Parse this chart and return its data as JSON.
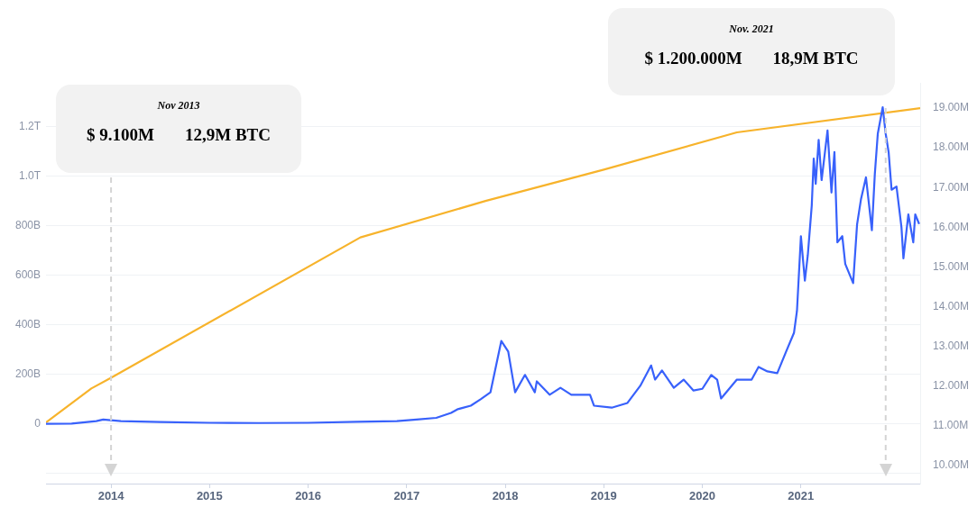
{
  "chart_data": {
    "type": "line",
    "annotations": [
      "Nov 2013",
      "$ 9.100M",
      "12,9M BTC",
      "Nov. 2021",
      "$ 1.200.000M",
      "18,9M BTC"
    ],
    "series": [
      {
        "color": "#3861fb",
        "x": [
          2013.34,
          2013.6,
          2013.85,
          2013.92,
          2014.1,
          2014.5,
          2015.0,
          2015.5,
          2016.0,
          2016.5,
          2016.9,
          2017.1,
          2017.3,
          2017.45,
          2017.52,
          2017.65,
          2017.75,
          2017.85,
          2017.96,
          2018.03,
          2018.1,
          2018.2,
          2018.3,
          2018.32,
          2018.45,
          2018.56,
          2018.67,
          2018.86,
          2018.9,
          2019.08,
          2019.24,
          2019.37,
          2019.48,
          2019.52,
          2019.59,
          2019.71,
          2019.81,
          2019.91,
          2020.0,
          2020.09,
          2020.15,
          2020.19,
          2020.35,
          2020.5,
          2020.57,
          2020.66,
          2020.76,
          2020.85,
          2020.93,
          2020.96,
          2021.0,
          2021.04,
          2021.07,
          2021.11,
          2021.13,
          2021.15,
          2021.18,
          2021.21,
          2021.27,
          2021.31,
          2021.34,
          2021.37,
          2021.42,
          2021.45,
          2021.53,
          2021.57,
          2021.61,
          2021.66,
          2021.72,
          2021.75,
          2021.78,
          2021.83,
          2021.86,
          2021.89,
          2021.92,
          2021.97,
          2022.02,
          2022.04,
          2022.09,
          2022.14,
          2022.16,
          2022.2
        ],
        "values": [
          1000000000.0,
          2000000000.0,
          12000000000.0,
          18000000000.0,
          12000000000.0,
          8000000000.0,
          5000000000.0,
          4000000000.0,
          5000000000.0,
          9000000000.0,
          12000000000.0,
          18000000000.0,
          25000000000.0,
          45000000000.0,
          60000000000.0,
          74000000000.0,
          100000000000.0,
          128000000000.0,
          335000000000.0,
          292000000000.0,
          128000000000.0,
          198000000000.0,
          128000000000.0,
          172000000000.0,
          118000000000.0,
          146000000000.0,
          118000000000.0,
          118000000000.0,
          74000000000.0,
          66000000000.0,
          85000000000.0,
          154000000000.0,
          236000000000.0,
          179000000000.0,
          216000000000.0,
          146000000000.0,
          179000000000.0,
          135000000000.0,
          142000000000.0,
          198000000000.0,
          179000000000.0,
          103000000000.0,
          179000000000.0,
          179000000000.0,
          230000000000.0,
          212000000000.0,
          205000000000.0,
          292000000000.0,
          368000000000.0,
          456000000000.0,
          757000000000.0,
          578000000000.0,
          681000000000.0,
          881000000000.0,
          1070000000000.0,
          968000000000.0,
          1145000000000.0,
          983000000000.0,
          1183000000000.0,
          933000000000.0,
          1096000000000.0,
          732000000000.0,
          757000000000.0,
          645000000000.0,
          568000000000.0,
          805000000000.0,
          907000000000.0,
          994000000000.0,
          781000000000.0,
          1008000000000.0,
          1170000000000.0,
          1277000000000.0,
          1170000000000.0,
          1096000000000.0,
          944000000000.0,
          957000000000.0,
          794000000000.0,
          668000000000.0,
          845000000000.0,
          732000000000.0,
          845000000000.0,
          806000000000.0
        ]
      },
      {
        "color": "#f7b32b",
        "axis": "y2",
        "x": [
          2013.34,
          2013.8,
          2014.0,
          2016.53,
          2017.8,
          2019.0,
          2020.35,
          2022.21
        ],
        "values": [
          11.07,
          11.93,
          12.2,
          15.74,
          16.66,
          17.45,
          18.39,
          19.0
        ]
      }
    ],
    "xlim": [
      2013.34,
      2022.21
    ],
    "xticks": [
      2014,
      2015,
      2016,
      2017,
      2018,
      2019,
      2020,
      2021
    ],
    "ylim": [
      -240000000000.0,
      1375000000000.0
    ],
    "yticks": [
      {
        "value": -200000000000.0,
        "label": null
      },
      0,
      {
        "value": 200000000000.0,
        "label": "200B"
      },
      {
        "value": 400000000000.0,
        "label": "400B"
      },
      {
        "value": 600000000000.0,
        "label": "600B"
      },
      {
        "value": 800000000000.0,
        "label": "800B"
      },
      {
        "value": 1000000000000.0,
        "label": "1.0T"
      },
      {
        "value": 1200000000000.0,
        "label": "1.2T"
      }
    ],
    "y2lim": [
      9.53,
      19.64
    ],
    "y2ticks": [
      {
        "value": 10,
        "label": "10.00M"
      },
      {
        "value": 11,
        "label": "11.00M"
      },
      {
        "value": 12,
        "label": "12.00M"
      },
      {
        "value": 13,
        "label": "13.00M"
      },
      {
        "value": 14,
        "label": "14.00M"
      },
      {
        "value": 15,
        "label": "15.00M"
      },
      {
        "value": 16,
        "label": "16.00M"
      },
      {
        "value": 17,
        "label": "17.00M"
      },
      {
        "value": 18,
        "label": "18.00M"
      },
      {
        "value": 19,
        "label": "19.00M"
      }
    ],
    "ref_lines": [
      {
        "axis": "x",
        "value": 2014.0,
        "color": "#d4d4d4",
        "line_style": "dashed"
      },
      {
        "axis": "x",
        "value": 2021.86,
        "color": "#d4d4d4",
        "line_style": "dashed"
      }
    ],
    "grid": "y",
    "legend": false,
    "marker": "none",
    "line_style": "solid"
  }
}
